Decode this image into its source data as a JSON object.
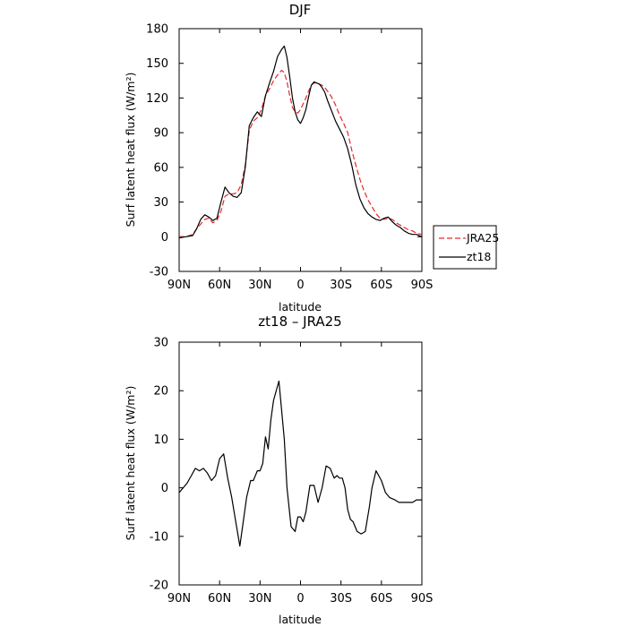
{
  "chart_data": [
    {
      "type": "line",
      "title": "DJF",
      "xlabel": "latitude",
      "ylabel": "Surf latent heat flux (W/m²)",
      "xlim": [
        90,
        -90
      ],
      "ylim": [
        -30,
        180
      ],
      "xticks": [
        90,
        60,
        30,
        0,
        -30,
        -60,
        -90
      ],
      "xtick_labels": [
        "90N",
        "60N",
        "30N",
        "0",
        "30S",
        "60S",
        "90S"
      ],
      "yticks": [
        -30,
        0,
        30,
        60,
        90,
        120,
        150,
        180
      ],
      "ytick_labels": [
        "-30",
        "0",
        "30",
        "60",
        "90",
        "120",
        "150",
        "180"
      ],
      "legend_position": "right",
      "series": [
        {
          "name": "JRA25",
          "color": "#e8262c",
          "dash": "dashed",
          "x": [
            90,
            85,
            80,
            77,
            74,
            71,
            68,
            65,
            62,
            59,
            56,
            53,
            50,
            47,
            44,
            41,
            38,
            35,
            32,
            29,
            26,
            23,
            20,
            17,
            14,
            12,
            10,
            8,
            6,
            4,
            2,
            0,
            -2,
            -4,
            -6,
            -8,
            -10,
            -12,
            -14,
            -16,
            -18,
            -20,
            -23,
            -26,
            -29,
            -32,
            -35,
            -38,
            -41,
            -44,
            -47,
            -50,
            -53,
            -56,
            -59,
            -62,
            -65,
            -68,
            -71,
            -74,
            -77,
            -80,
            -83,
            -86,
            -90
          ],
          "y": [
            0,
            0,
            2,
            7,
            11,
            15,
            16,
            12,
            14,
            22,
            35,
            37,
            37,
            38,
            45,
            62,
            92,
            100,
            103,
            110,
            122,
            128,
            135,
            140,
            144,
            142,
            134,
            122,
            112,
            108,
            107,
            110,
            115,
            120,
            126,
            131,
            133,
            133,
            132,
            131,
            129,
            126,
            121,
            114,
            105,
            98,
            90,
            75,
            62,
            50,
            40,
            32,
            26,
            20,
            16,
            15,
            16,
            15,
            12,
            10,
            8,
            6,
            5,
            3,
            2
          ]
        },
        {
          "name": "zt18",
          "color": "#000000",
          "dash": "solid",
          "x": [
            90,
            85,
            80,
            77,
            74,
            71,
            68,
            65,
            62,
            59,
            56,
            53,
            50,
            47,
            44,
            41,
            38,
            35,
            32,
            29,
            26,
            23,
            20,
            17,
            14,
            12,
            10,
            8,
            6,
            4,
            2,
            0,
            -2,
            -4,
            -6,
            -8,
            -10,
            -12,
            -14,
            -16,
            -18,
            -20,
            -23,
            -26,
            -29,
            -32,
            -35,
            -38,
            -41,
            -44,
            -47,
            -50,
            -53,
            -56,
            -59,
            -62,
            -65,
            -68,
            -71,
            -74,
            -77,
            -80,
            -83,
            -86,
            -90
          ],
          "y": [
            -1,
            0,
            1,
            7,
            15,
            19,
            17,
            14,
            16,
            30,
            43,
            38,
            35,
            34,
            38,
            60,
            96,
            103,
            108,
            104,
            122,
            133,
            143,
            156,
            162,
            165,
            155,
            138,
            120,
            108,
            101,
            98,
            103,
            110,
            121,
            131,
            134,
            133,
            132,
            129,
            125,
            118,
            109,
            100,
            93,
            86,
            76,
            62,
            45,
            33,
            25,
            20,
            17,
            15,
            14,
            16,
            17,
            13,
            10,
            8,
            5,
            3,
            2,
            2,
            0
          ]
        }
      ]
    },
    {
      "type": "line",
      "title": "zt18 – JRA25",
      "xlabel": "latitude",
      "ylabel": "Surf latent heat flux (W/m²)",
      "xlim": [
        90,
        -90
      ],
      "ylim": [
        -20,
        30
      ],
      "xticks": [
        90,
        60,
        30,
        0,
        -30,
        -60,
        -90
      ],
      "xtick_labels": [
        "90N",
        "60N",
        "30N",
        "0",
        "30S",
        "60S",
        "90S"
      ],
      "yticks": [
        -20,
        -10,
        0,
        10,
        20,
        30
      ],
      "ytick_labels": [
        "-20",
        "-10",
        "0",
        "10",
        "20",
        "30"
      ],
      "series": [
        {
          "color": "#000000",
          "dash": "solid",
          "x": [
            90,
            87,
            84,
            81,
            78,
            75,
            72,
            69,
            66,
            63,
            60,
            57,
            54,
            51,
            48,
            45,
            43,
            40,
            37,
            35,
            32,
            30,
            28,
            26,
            24,
            22,
            20,
            18,
            16,
            14,
            12,
            10,
            7,
            4,
            2,
            0,
            -2,
            -4,
            -7,
            -10,
            -13,
            -16,
            -19,
            -22,
            -25,
            -27,
            -29,
            -31,
            -33,
            -35,
            -37,
            -39,
            -42,
            -45,
            -48,
            -51,
            -53,
            -56,
            -60,
            -63,
            -66,
            -70,
            -73,
            -76,
            -80,
            -83,
            -86,
            -90
          ],
          "y": [
            -1,
            0,
            1,
            2.5,
            4,
            3.5,
            4,
            3,
            1.5,
            2.5,
            6,
            7,
            2,
            -2,
            -7,
            -12,
            -8,
            -2,
            1.5,
            1.5,
            3.5,
            3.5,
            5,
            10.5,
            8,
            14,
            18,
            20,
            22,
            16,
            10,
            0,
            -8,
            -9,
            -6,
            -6,
            -7,
            -5,
            0.5,
            0.5,
            -3,
            0,
            4.5,
            4,
            2,
            2.5,
            2,
            2,
            0,
            -4.5,
            -6.5,
            -7,
            -9,
            -9.5,
            -9,
            -4,
            0,
            3.5,
            1.5,
            -1,
            -2,
            -2.5,
            -3,
            -3,
            -3,
            -3,
            -2.5,
            -2.5
          ]
        }
      ]
    }
  ]
}
